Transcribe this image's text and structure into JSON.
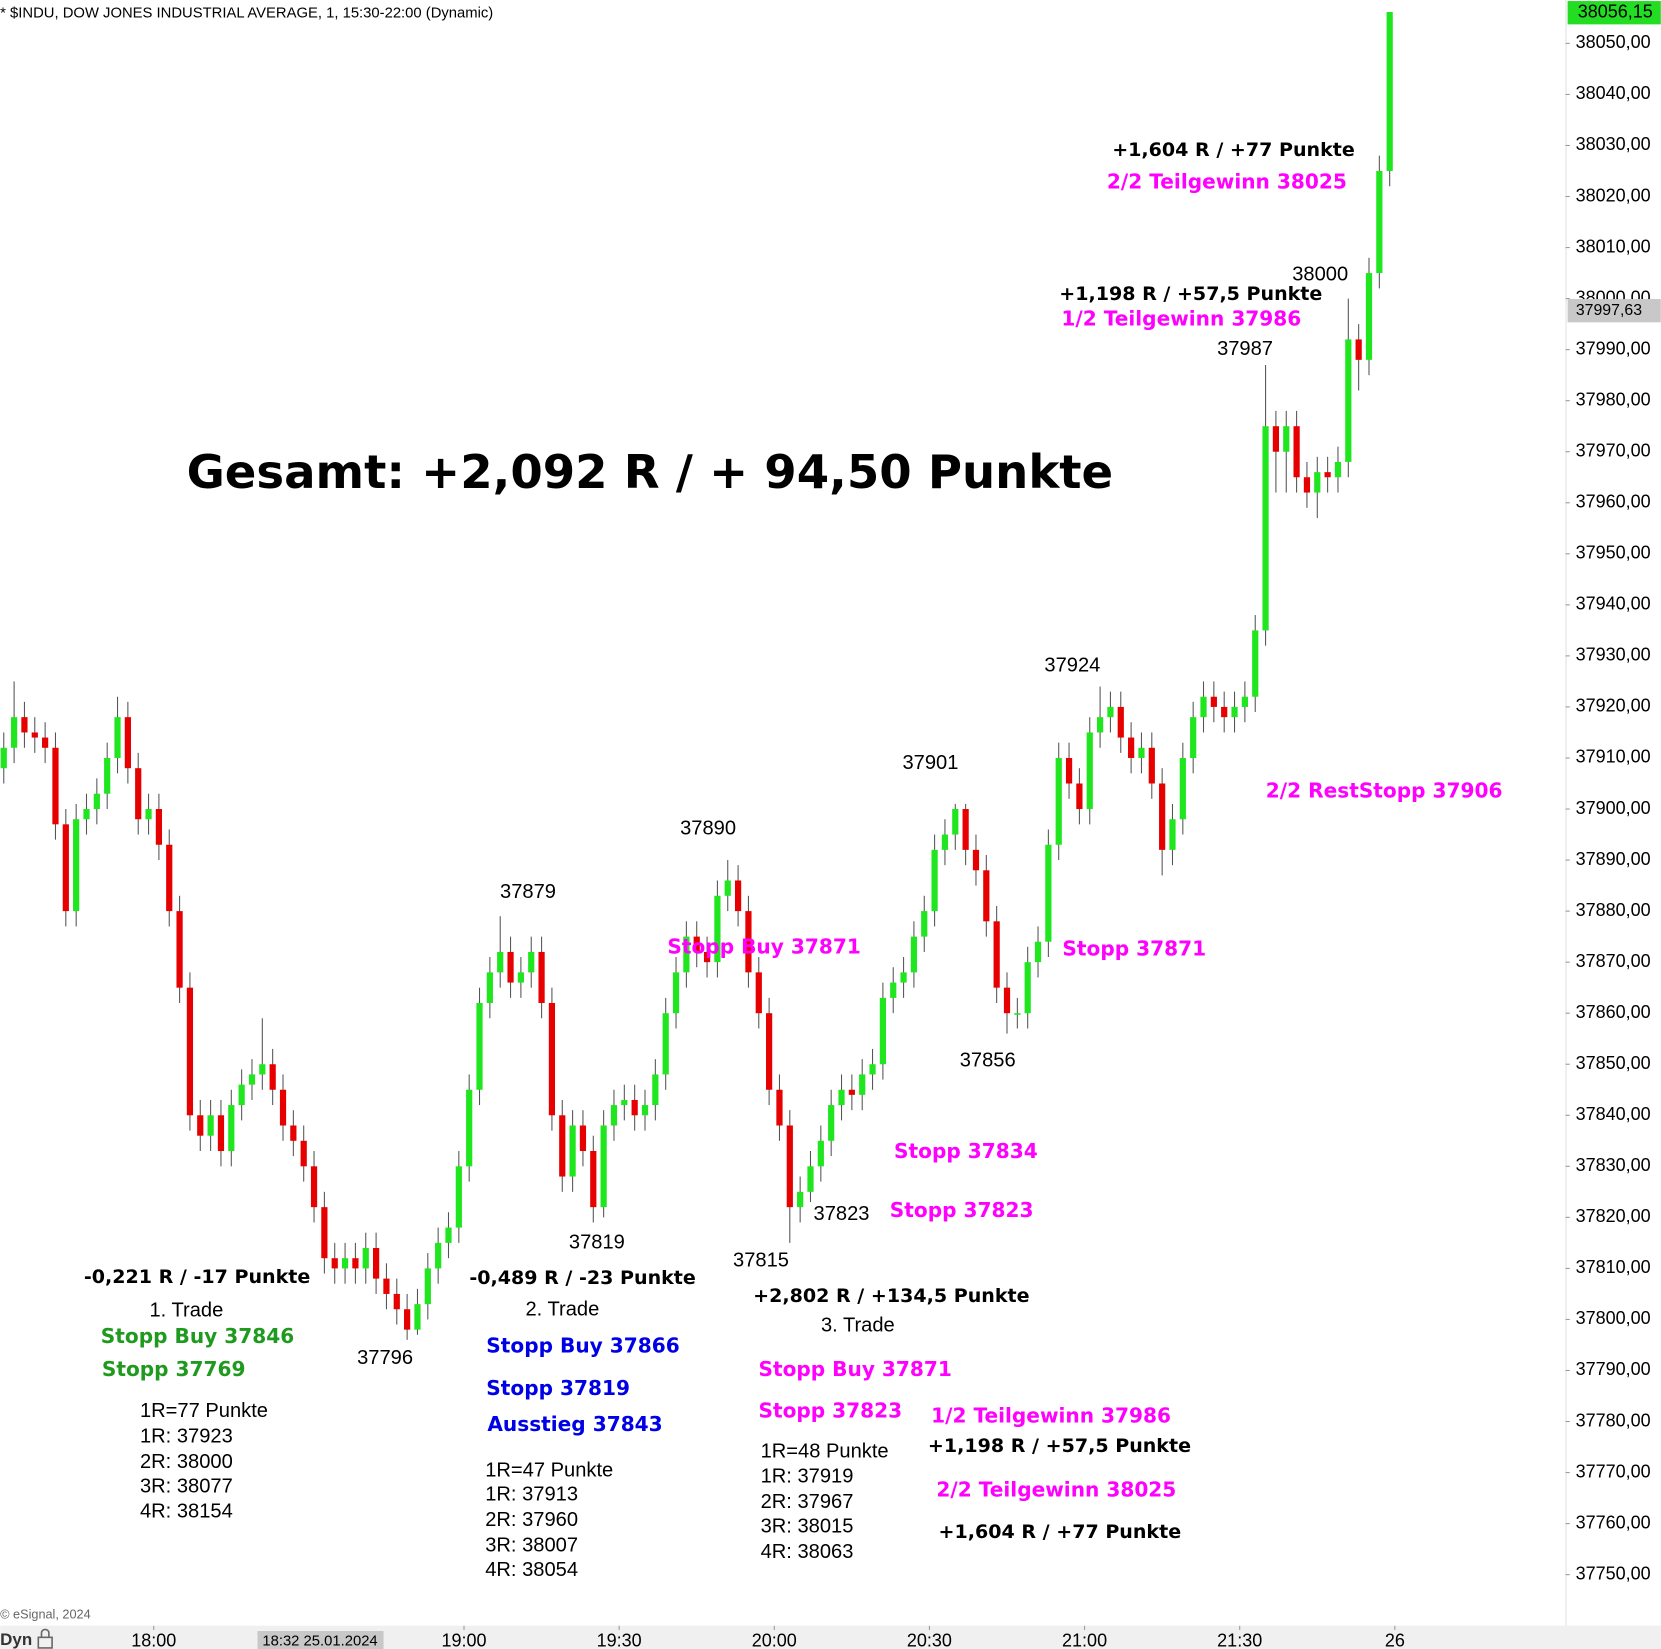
{
  "chart_data": {
    "type": "candlestick",
    "title": "* $INDU, DOW JONES INDUSTRIAL AVERAGE, 1, 15:30-22:00 (Dynamic)",
    "source": "© eSignal, 2024",
    "bottom_label": "Dyn",
    "crosshair_time": "18:32 25.01.2024",
    "crosshair_price": {
      "value": 37997.63,
      "label": "37997,63"
    },
    "last_price": {
      "value": 38056.15,
      "label": "38056,15"
    },
    "up_color": "#1fe61f",
    "down_color": "#e60000",
    "categories": [
      null,
      null,
      null,
      null,
      null,
      null,
      null,
      null,
      null,
      null,
      null,
      null,
      null,
      null,
      null,
      null,
      null,
      null,
      null,
      null,
      null,
      null,
      null,
      null,
      null,
      null,
      null,
      null,
      null,
      null,
      null,
      null,
      null,
      null,
      null,
      null,
      null,
      null,
      null,
      null,
      null,
      null,
      null,
      null,
      null,
      null,
      null,
      null,
      null,
      null,
      null,
      null,
      null,
      null,
      null,
      null,
      null,
      null,
      null,
      null,
      null,
      null,
      null,
      null,
      null,
      null,
      null,
      null,
      null,
      null,
      null,
      null,
      null,
      null,
      null,
      null,
      null,
      null,
      null,
      null,
      null,
      null,
      null,
      null,
      null,
      null,
      null,
      null,
      null,
      null,
      null,
      null,
      null,
      null,
      null,
      null,
      null,
      null,
      null,
      null,
      null,
      null,
      null,
      null,
      null,
      null,
      null,
      null,
      null,
      null,
      null,
      null,
      null,
      null,
      null,
      null,
      null,
      null,
      null,
      null,
      null,
      null,
      null,
      null,
      null,
      null,
      null,
      null,
      null,
      null,
      null,
      null,
      null,
      null,
      null
    ],
    "open": [
      37908,
      37912,
      37918,
      37915,
      37914,
      37912,
      37897,
      37880,
      37898,
      37900,
      37903,
      37910,
      37918,
      37908,
      37898,
      37900,
      37893,
      37880,
      37865,
      37840,
      37836,
      37840,
      37833,
      37842,
      37846,
      37848,
      37850,
      37845,
      37838,
      37835,
      37830,
      37822,
      37812,
      37810,
      37812,
      37810,
      37814,
      37808,
      37805,
      37802,
      37798,
      37803,
      37810,
      37815,
      37818,
      37830,
      37845,
      37862,
      37868,
      37872,
      37866,
      37868,
      37872,
      37862,
      37840,
      37828,
      37838,
      37833,
      37822,
      37838,
      37842,
      37843,
      37840,
      37842,
      37848,
      37860,
      37868,
      37875,
      37872,
      37870,
      37883,
      37886,
      37880,
      37868,
      37860,
      37845,
      37838,
      37822,
      37825,
      37830,
      37835,
      37842,
      37845,
      37844,
      37848,
      37850,
      37863,
      37866,
      37868,
      37875,
      37880,
      37892,
      37895,
      37900,
      37892,
      37888,
      37878,
      37865,
      37860,
      37860,
      37870,
      37874,
      37893,
      37910,
      37905,
      37900,
      37915,
      37918,
      37920,
      37914,
      37910,
      37912,
      37905,
      37892,
      37898,
      37910,
      37918,
      37922,
      37920,
      37918,
      37920,
      37922,
      37935,
      37975,
      37970,
      37975,
      37965,
      37962,
      37966,
      37965,
      37968,
      37992,
      37988,
      38005,
      38025
    ],
    "high": [
      37915,
      37925,
      37921,
      37918,
      37917,
      37915,
      37900,
      37901,
      37903,
      37906,
      37913,
      37922,
      37921,
      37911,
      37903,
      37903,
      37896,
      37883,
      37868,
      37843,
      37843,
      37843,
      37845,
      37849,
      37851,
      37859,
      37853,
      37848,
      37841,
      37838,
      37833,
      37825,
      37815,
      37815,
      37815,
      37817,
      37817,
      37811,
      37808,
      37805,
      37806,
      37813,
      37818,
      37821,
      37833,
      37848,
      37865,
      37871,
      37879,
      37875,
      37871,
      37875,
      37875,
      37865,
      37843,
      37841,
      37841,
      37836,
      37841,
      37845,
      37846,
      37846,
      37845,
      37851,
      37863,
      37871,
      37878,
      37878,
      37875,
      37886,
      37890,
      37889,
      37883,
      37871,
      37863,
      37848,
      37841,
      37828,
      37833,
      37838,
      37845,
      37848,
      37848,
      37851,
      37853,
      37866,
      37869,
      37871,
      37878,
      37883,
      37895,
      37898,
      37901,
      37901,
      37895,
      37891,
      37881,
      37868,
      37863,
      37873,
      37877,
      37896,
      37913,
      37913,
      37908,
      37918,
      37924,
      37923,
      37923,
      37917,
      37915,
      37915,
      37908,
      37901,
      37913,
      37921,
      37925,
      37925,
      37923,
      37923,
      37925,
      37938,
      37987,
      37978,
      37978,
      37978,
      37968,
      37969,
      37969,
      37971,
      38000,
      37995,
      38008,
      38028,
      38056.15
    ],
    "low": [
      37905,
      37909,
      37912,
      37911,
      37909,
      37894,
      37877,
      37877,
      37895,
      37897,
      37900,
      37907,
      37905,
      37895,
      37895,
      37890,
      37877,
      37862,
      37837,
      37833,
      37833,
      37830,
      37830,
      37839,
      37843,
      37845,
      37842,
      37835,
      37832,
      37827,
      37819,
      37809,
      37807,
      37807,
      37807,
      37807,
      37805,
      37802,
      37799,
      37796,
      37797,
      37800,
      37807,
      37812,
      37815,
      37827,
      37842,
      37859,
      37865,
      37863,
      37863,
      37865,
      37859,
      37837,
      37825,
      37825,
      37830,
      37819,
      37820,
      37835,
      37839,
      37837,
      37837,
      37839,
      37845,
      37857,
      37865,
      37869,
      37867,
      37867,
      37880,
      37877,
      37865,
      37857,
      37842,
      37835,
      37815,
      37819,
      37823,
      37827,
      37832,
      37839,
      37841,
      37841,
      37845,
      37847,
      37860,
      37863,
      37865,
      37872,
      37877,
      37889,
      37892,
      37889,
      37885,
      37875,
      37862,
      37856,
      37857,
      37857,
      37867,
      37871,
      37890,
      37902,
      37897,
      37897,
      37912,
      37915,
      37911,
      37907,
      37907,
      37902,
      37887,
      37889,
      37895,
      37907,
      37915,
      37917,
      37915,
      37915,
      37917,
      37919,
      37932,
      37962,
      37962,
      37962,
      37959,
      37957,
      37962,
      37962,
      37965,
      37982,
      37985,
      38002,
      38022
    ],
    "close": [
      37912,
      37918,
      37915,
      37914,
      37912,
      37897,
      37880,
      37898,
      37900,
      37903,
      37910,
      37918,
      37908,
      37898,
      37900,
      37893,
      37880,
      37865,
      37840,
      37836,
      37840,
      37833,
      37842,
      37846,
      37848,
      37850,
      37845,
      37838,
      37835,
      37830,
      37822,
      37812,
      37810,
      37812,
      37810,
      37814,
      37808,
      37805,
      37802,
      37798,
      37803,
      37810,
      37815,
      37818,
      37830,
      37845,
      37862,
      37868,
      37872,
      37866,
      37868,
      37872,
      37862,
      37840,
      37828,
      37838,
      37833,
      37822,
      37838,
      37842,
      37843,
      37840,
      37842,
      37848,
      37860,
      37868,
      37875,
      37872,
      37870,
      37883,
      37886,
      37880,
      37868,
      37860,
      37845,
      37838,
      37822,
      37825,
      37830,
      37835,
      37842,
      37845,
      37844,
      37848,
      37850,
      37863,
      37866,
      37868,
      37875,
      37880,
      37892,
      37895,
      37900,
      37892,
      37888,
      37878,
      37865,
      37860,
      37860,
      37870,
      37874,
      37893,
      37910,
      37905,
      37900,
      37915,
      37918,
      37920,
      37914,
      37910,
      37912,
      37905,
      37892,
      37898,
      37910,
      37918,
      37922,
      37920,
      37918,
      37920,
      37922,
      37935,
      37975,
      37970,
      37975,
      37965,
      37962,
      37966,
      37965,
      37968,
      37992,
      37988,
      38005,
      38025,
      38056.15
    ],
    "xlim": [
      0,
      151.5
    ],
    "xticks": [
      {
        "value": 15,
        "label": "18:00"
      },
      {
        "value": 45,
        "label": "19:00"
      },
      {
        "value": 60,
        "label": "19:30"
      },
      {
        "value": 75,
        "label": "20:00"
      },
      {
        "value": 90,
        "label": "20:30"
      },
      {
        "value": 105,
        "label": "21:00"
      },
      {
        "value": 120,
        "label": "21:30"
      },
      {
        "value": 135,
        "label": "26"
      }
    ],
    "ylim": [
      37740,
      38058.5
    ],
    "yticks": [
      {
        "value": 37750,
        "label": "37750,00"
      },
      {
        "value": 37760,
        "label": "37760,00"
      },
      {
        "value": 37770,
        "label": "37770,00"
      },
      {
        "value": 37780,
        "label": "37780,00"
      },
      {
        "value": 37790,
        "label": "37790,00"
      },
      {
        "value": 37800,
        "label": "37800,00"
      },
      {
        "value": 37810,
        "label": "37810,00"
      },
      {
        "value": 37820,
        "label": "37820,00"
      },
      {
        "value": 37830,
        "label": "37830,00"
      },
      {
        "value": 37840,
        "label": "37840,00"
      },
      {
        "value": 37850,
        "label": "37850,00"
      },
      {
        "value": 37860,
        "label": "37860,00"
      },
      {
        "value": 37870,
        "label": "37870,00"
      },
      {
        "value": 37880,
        "label": "37880,00"
      },
      {
        "value": 37890,
        "label": "37890,00"
      },
      {
        "value": 37900,
        "label": "37900,00"
      },
      {
        "value": 37910,
        "label": "37910,00"
      },
      {
        "value": 37920,
        "label": "37920,00"
      },
      {
        "value": 37930,
        "label": "37930,00"
      },
      {
        "value": 37940,
        "label": "37940,00"
      },
      {
        "value": 37950,
        "label": "37950,00"
      },
      {
        "value": 37960,
        "label": "37960,00"
      },
      {
        "value": 37970,
        "label": "37970,00"
      },
      {
        "value": 37980,
        "label": "37980,00"
      },
      {
        "value": 37990,
        "label": "37990,00"
      },
      {
        "value": 38000,
        "label": "38000,00"
      },
      {
        "value": 38010,
        "label": "38010,00"
      },
      {
        "value": 38020,
        "label": "38020,00"
      },
      {
        "value": 38030,
        "label": "38030,00"
      },
      {
        "value": 38040,
        "label": "38040,00"
      },
      {
        "value": 38050,
        "label": "38050,00"
      }
    ],
    "grid": false,
    "annotations": [
      "Gesamt: +2,092 R / + 94,50 Punkte",
      "+1,604 R / +77 Punkte",
      "2/2 Teilgewinn 38025",
      "38000",
      "+1,198 R / +57,5 Punkte",
      "1/2 Teilgewinn 37986",
      "37987",
      "37924",
      "37901",
      "2/2 RestStopp 37906",
      "37890",
      "37879",
      "Stopp Buy 37871",
      "Stopp 37871",
      "37856",
      "Stopp 37834",
      "37823",
      "Stopp 37823",
      "37819",
      "37815",
      "-0,221 R / -17 Punkte",
      "-0,489 R / -23 Punkte",
      "+2,802 R / +134,5 Punkte",
      "1. Trade",
      "2. Trade",
      "3. Trade",
      "Stopp Buy 37846",
      "Stopp 37769",
      "37796",
      "Stopp Buy 37866",
      "Stopp 37819",
      "Ausstieg 37843",
      "Stopp Buy 37871",
      "Stopp 37823",
      "1/2 Teilgewinn 37986",
      "+1,198 R / +57,5 Punkte",
      "2/2 Teilgewinn 38025",
      "+1,604 R / +77 Punkte",
      "1R=77 Punkte",
      "1R: 37923",
      "2R: 38000",
      "3R: 38077",
      "4R: 38154",
      "1R=47 Punkte",
      "1R: 37913",
      "2R: 37960",
      "3R: 38007",
      "4R: 38054",
      "1R=48 Punkte",
      "1R: 37919",
      "2R: 37967",
      "3R: 38015",
      "4R: 38063"
    ]
  }
}
